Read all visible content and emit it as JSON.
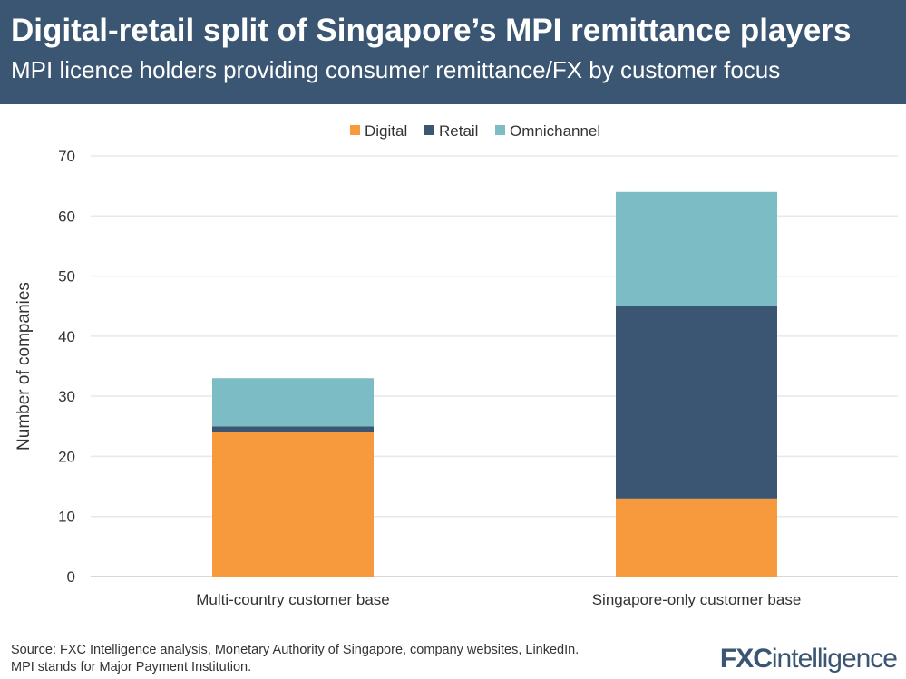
{
  "header": {
    "title": "Digital-retail split of Singapore’s MPI remittance players",
    "subtitle": "MPI licence holders providing consumer remittance/FX by customer focus"
  },
  "footer": {
    "source": "Source: FXC Intelligence analysis, Monetary Authority of Singapore, company websites, LinkedIn.",
    "note": "MPI stands for Major Payment Institution.",
    "logo": "FXCintelligence"
  },
  "chart_data": {
    "type": "bar",
    "stacked": true,
    "title": "",
    "xlabel": "",
    "ylabel": "Number of companies",
    "ylim": [
      0,
      70
    ],
    "yticks": [
      0,
      10,
      20,
      30,
      40,
      50,
      60,
      70
    ],
    "grid": true,
    "legend_position": "top",
    "categories": [
      "Multi-country customer base",
      "Singapore-only customer base"
    ],
    "series": [
      {
        "name": "Digital",
        "color": "#f7993d",
        "values": [
          24,
          13
        ]
      },
      {
        "name": "Retail",
        "color": "#3a5672",
        "values": [
          1,
          32
        ]
      },
      {
        "name": "Omnichannel",
        "color": "#7bbcc5",
        "values": [
          8,
          19
        ]
      }
    ]
  }
}
